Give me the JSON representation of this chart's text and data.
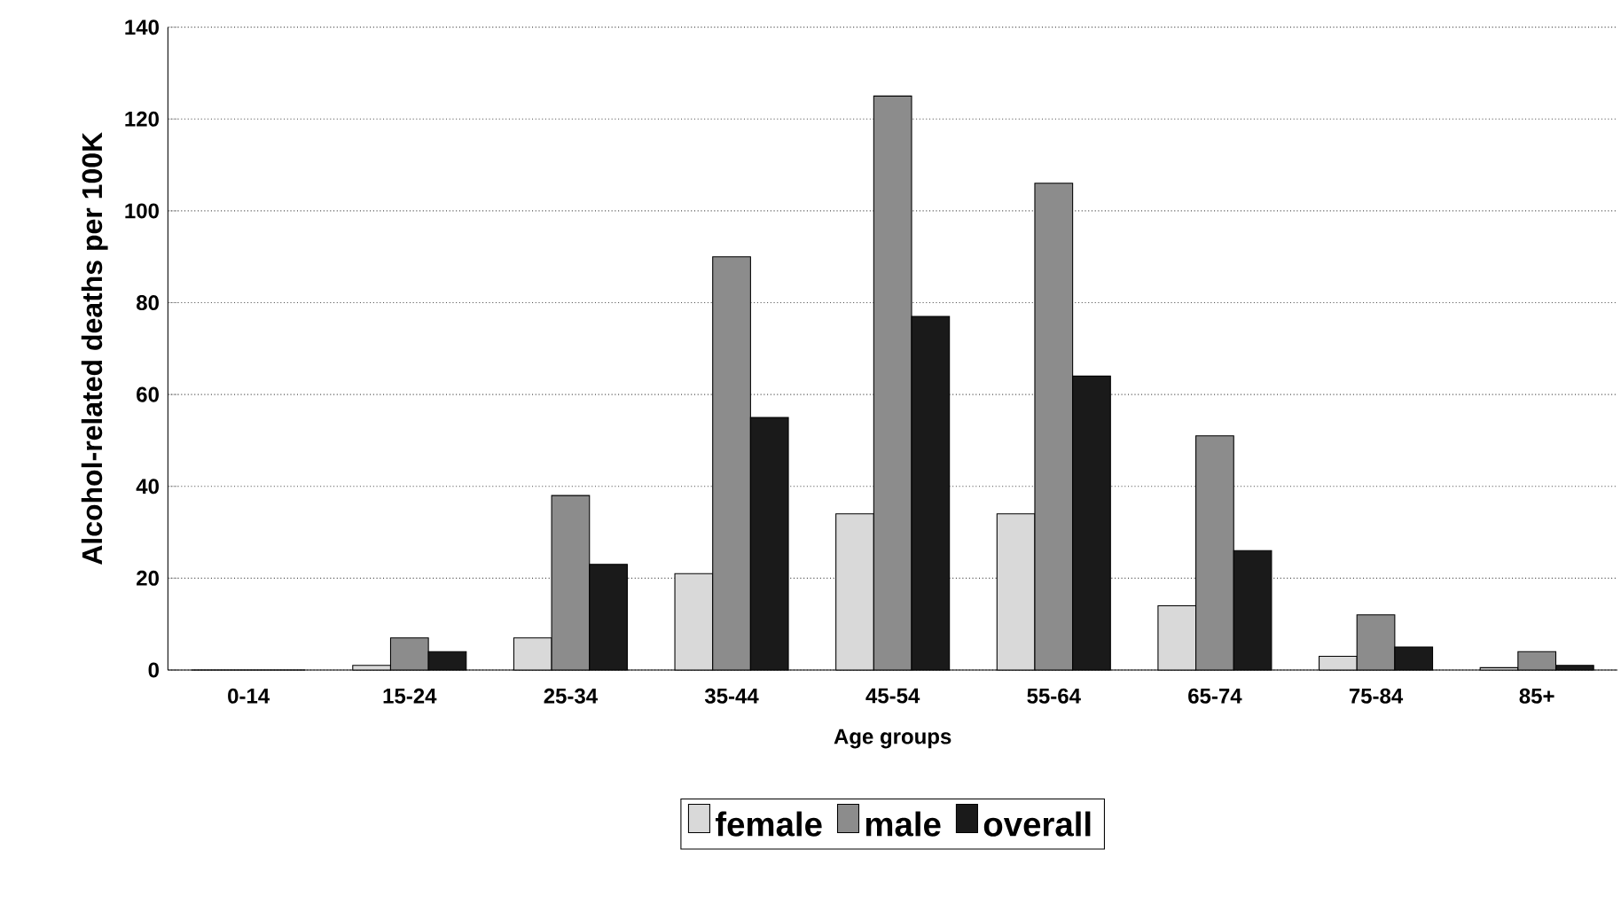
{
  "chart_data": {
    "type": "bar",
    "xlabel": "Age groups",
    "ylabel": "Alcohol-related deaths per 100K",
    "categories": [
      "0-14",
      "15-24",
      "25-34",
      "35-44",
      "45-54",
      "55-64",
      "65-74",
      "75-84",
      "85+"
    ],
    "series": [
      {
        "name": "female",
        "color": "#d9d9d9",
        "values": [
          0,
          1,
          7,
          21,
          34,
          34,
          14,
          3,
          0.5
        ]
      },
      {
        "name": "male",
        "color": "#8c8c8c",
        "values": [
          0,
          7,
          38,
          90,
          125,
          106,
          51,
          12,
          4
        ]
      },
      {
        "name": "overall",
        "color": "#1a1a1a",
        "values": [
          0,
          4,
          23,
          55,
          77,
          64,
          26,
          5,
          1
        ]
      }
    ],
    "ylim": [
      0,
      140
    ],
    "yticks": [
      0,
      20,
      40,
      60,
      80,
      100,
      120,
      140
    ],
    "grid": "y",
    "legend": "bottom"
  }
}
